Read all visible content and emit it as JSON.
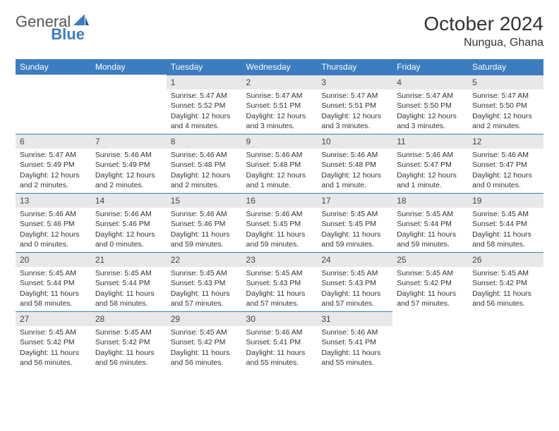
{
  "brand": {
    "part1": "General",
    "part2": "Blue"
  },
  "title": "October 2024",
  "location": "Nungua, Ghana",
  "colors": {
    "header_bg": "#3b7dbf",
    "header_fg": "#ffffff",
    "daynum_bg": "#e8e8e8",
    "daynum_border": "#3b7dbf",
    "page_bg": "#ffffff",
    "text": "#333333"
  },
  "typography": {
    "title_fontsize": 28,
    "location_fontsize": 16,
    "weekday_fontsize": 12,
    "daynum_fontsize": 12,
    "body_fontsize": 10.5
  },
  "weekdays": [
    "Sunday",
    "Monday",
    "Tuesday",
    "Wednesday",
    "Thursday",
    "Friday",
    "Saturday"
  ],
  "weeks": [
    [
      null,
      null,
      {
        "n": "1",
        "sr": "Sunrise: 5:47 AM",
        "ss": "Sunset: 5:52 PM",
        "dl": "Daylight: 12 hours and 4 minutes."
      },
      {
        "n": "2",
        "sr": "Sunrise: 5:47 AM",
        "ss": "Sunset: 5:51 PM",
        "dl": "Daylight: 12 hours and 3 minutes."
      },
      {
        "n": "3",
        "sr": "Sunrise: 5:47 AM",
        "ss": "Sunset: 5:51 PM",
        "dl": "Daylight: 12 hours and 3 minutes."
      },
      {
        "n": "4",
        "sr": "Sunrise: 5:47 AM",
        "ss": "Sunset: 5:50 PM",
        "dl": "Daylight: 12 hours and 3 minutes."
      },
      {
        "n": "5",
        "sr": "Sunrise: 5:47 AM",
        "ss": "Sunset: 5:50 PM",
        "dl": "Daylight: 12 hours and 2 minutes."
      }
    ],
    [
      {
        "n": "6",
        "sr": "Sunrise: 5:47 AM",
        "ss": "Sunset: 5:49 PM",
        "dl": "Daylight: 12 hours and 2 minutes."
      },
      {
        "n": "7",
        "sr": "Sunrise: 5:46 AM",
        "ss": "Sunset: 5:49 PM",
        "dl": "Daylight: 12 hours and 2 minutes."
      },
      {
        "n": "8",
        "sr": "Sunrise: 5:46 AM",
        "ss": "Sunset: 5:48 PM",
        "dl": "Daylight: 12 hours and 2 minutes."
      },
      {
        "n": "9",
        "sr": "Sunrise: 5:46 AM",
        "ss": "Sunset: 5:48 PM",
        "dl": "Daylight: 12 hours and 1 minute."
      },
      {
        "n": "10",
        "sr": "Sunrise: 5:46 AM",
        "ss": "Sunset: 5:48 PM",
        "dl": "Daylight: 12 hours and 1 minute."
      },
      {
        "n": "11",
        "sr": "Sunrise: 5:46 AM",
        "ss": "Sunset: 5:47 PM",
        "dl": "Daylight: 12 hours and 1 minute."
      },
      {
        "n": "12",
        "sr": "Sunrise: 5:46 AM",
        "ss": "Sunset: 5:47 PM",
        "dl": "Daylight: 12 hours and 0 minutes."
      }
    ],
    [
      {
        "n": "13",
        "sr": "Sunrise: 5:46 AM",
        "ss": "Sunset: 5:46 PM",
        "dl": "Daylight: 12 hours and 0 minutes."
      },
      {
        "n": "14",
        "sr": "Sunrise: 5:46 AM",
        "ss": "Sunset: 5:46 PM",
        "dl": "Daylight: 12 hours and 0 minutes."
      },
      {
        "n": "15",
        "sr": "Sunrise: 5:46 AM",
        "ss": "Sunset: 5:46 PM",
        "dl": "Daylight: 11 hours and 59 minutes."
      },
      {
        "n": "16",
        "sr": "Sunrise: 5:46 AM",
        "ss": "Sunset: 5:45 PM",
        "dl": "Daylight: 11 hours and 59 minutes."
      },
      {
        "n": "17",
        "sr": "Sunrise: 5:45 AM",
        "ss": "Sunset: 5:45 PM",
        "dl": "Daylight: 11 hours and 59 minutes."
      },
      {
        "n": "18",
        "sr": "Sunrise: 5:45 AM",
        "ss": "Sunset: 5:44 PM",
        "dl": "Daylight: 11 hours and 59 minutes."
      },
      {
        "n": "19",
        "sr": "Sunrise: 5:45 AM",
        "ss": "Sunset: 5:44 PM",
        "dl": "Daylight: 11 hours and 58 minutes."
      }
    ],
    [
      {
        "n": "20",
        "sr": "Sunrise: 5:45 AM",
        "ss": "Sunset: 5:44 PM",
        "dl": "Daylight: 11 hours and 58 minutes."
      },
      {
        "n": "21",
        "sr": "Sunrise: 5:45 AM",
        "ss": "Sunset: 5:44 PM",
        "dl": "Daylight: 11 hours and 58 minutes."
      },
      {
        "n": "22",
        "sr": "Sunrise: 5:45 AM",
        "ss": "Sunset: 5:43 PM",
        "dl": "Daylight: 11 hours and 57 minutes."
      },
      {
        "n": "23",
        "sr": "Sunrise: 5:45 AM",
        "ss": "Sunset: 5:43 PM",
        "dl": "Daylight: 11 hours and 57 minutes."
      },
      {
        "n": "24",
        "sr": "Sunrise: 5:45 AM",
        "ss": "Sunset: 5:43 PM",
        "dl": "Daylight: 11 hours and 57 minutes."
      },
      {
        "n": "25",
        "sr": "Sunrise: 5:45 AM",
        "ss": "Sunset: 5:42 PM",
        "dl": "Daylight: 11 hours and 57 minutes."
      },
      {
        "n": "26",
        "sr": "Sunrise: 5:45 AM",
        "ss": "Sunset: 5:42 PM",
        "dl": "Daylight: 11 hours and 56 minutes."
      }
    ],
    [
      {
        "n": "27",
        "sr": "Sunrise: 5:45 AM",
        "ss": "Sunset: 5:42 PM",
        "dl": "Daylight: 11 hours and 56 minutes."
      },
      {
        "n": "28",
        "sr": "Sunrise: 5:45 AM",
        "ss": "Sunset: 5:42 PM",
        "dl": "Daylight: 11 hours and 56 minutes."
      },
      {
        "n": "29",
        "sr": "Sunrise: 5:45 AM",
        "ss": "Sunset: 5:42 PM",
        "dl": "Daylight: 11 hours and 56 minutes."
      },
      {
        "n": "30",
        "sr": "Sunrise: 5:46 AM",
        "ss": "Sunset: 5:41 PM",
        "dl": "Daylight: 11 hours and 55 minutes."
      },
      {
        "n": "31",
        "sr": "Sunrise: 5:46 AM",
        "ss": "Sunset: 5:41 PM",
        "dl": "Daylight: 11 hours and 55 minutes."
      },
      null,
      null
    ]
  ]
}
